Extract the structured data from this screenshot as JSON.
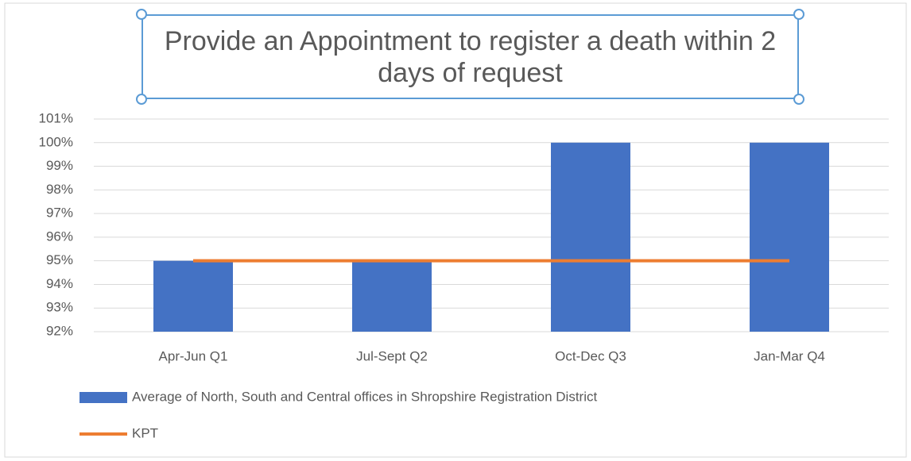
{
  "chart_data": {
    "type": "bar",
    "title": "Provide an Appointment to register a death within 2 days of request",
    "categories": [
      "Apr-Jun Q1",
      "Jul-Sept Q2",
      "Oct-Dec Q3",
      "Jan-Mar Q4"
    ],
    "series": [
      {
        "name": "Average of North, South and Central offices in Shropshire Registration District",
        "type": "bar",
        "color": "#4472c4",
        "values": [
          95,
          95,
          100,
          100
        ]
      },
      {
        "name": "KPT",
        "type": "line",
        "color": "#ed7d31",
        "values": [
          95,
          95,
          95,
          95
        ]
      }
    ],
    "ylim": [
      92,
      101
    ],
    "yticks": [
      {
        "value": 92,
        "label": "92%"
      },
      {
        "value": 93,
        "label": "93%"
      },
      {
        "value": 94,
        "label": "94%"
      },
      {
        "value": 95,
        "label": "95%"
      },
      {
        "value": 96,
        "label": "96%"
      },
      {
        "value": 97,
        "label": "97%"
      },
      {
        "value": 98,
        "label": "98%"
      },
      {
        "value": 99,
        "label": "99%"
      },
      {
        "value": 100,
        "label": "100%"
      },
      {
        "value": 101,
        "label": "101%"
      }
    ],
    "grid": true,
    "legend": "bottom"
  }
}
